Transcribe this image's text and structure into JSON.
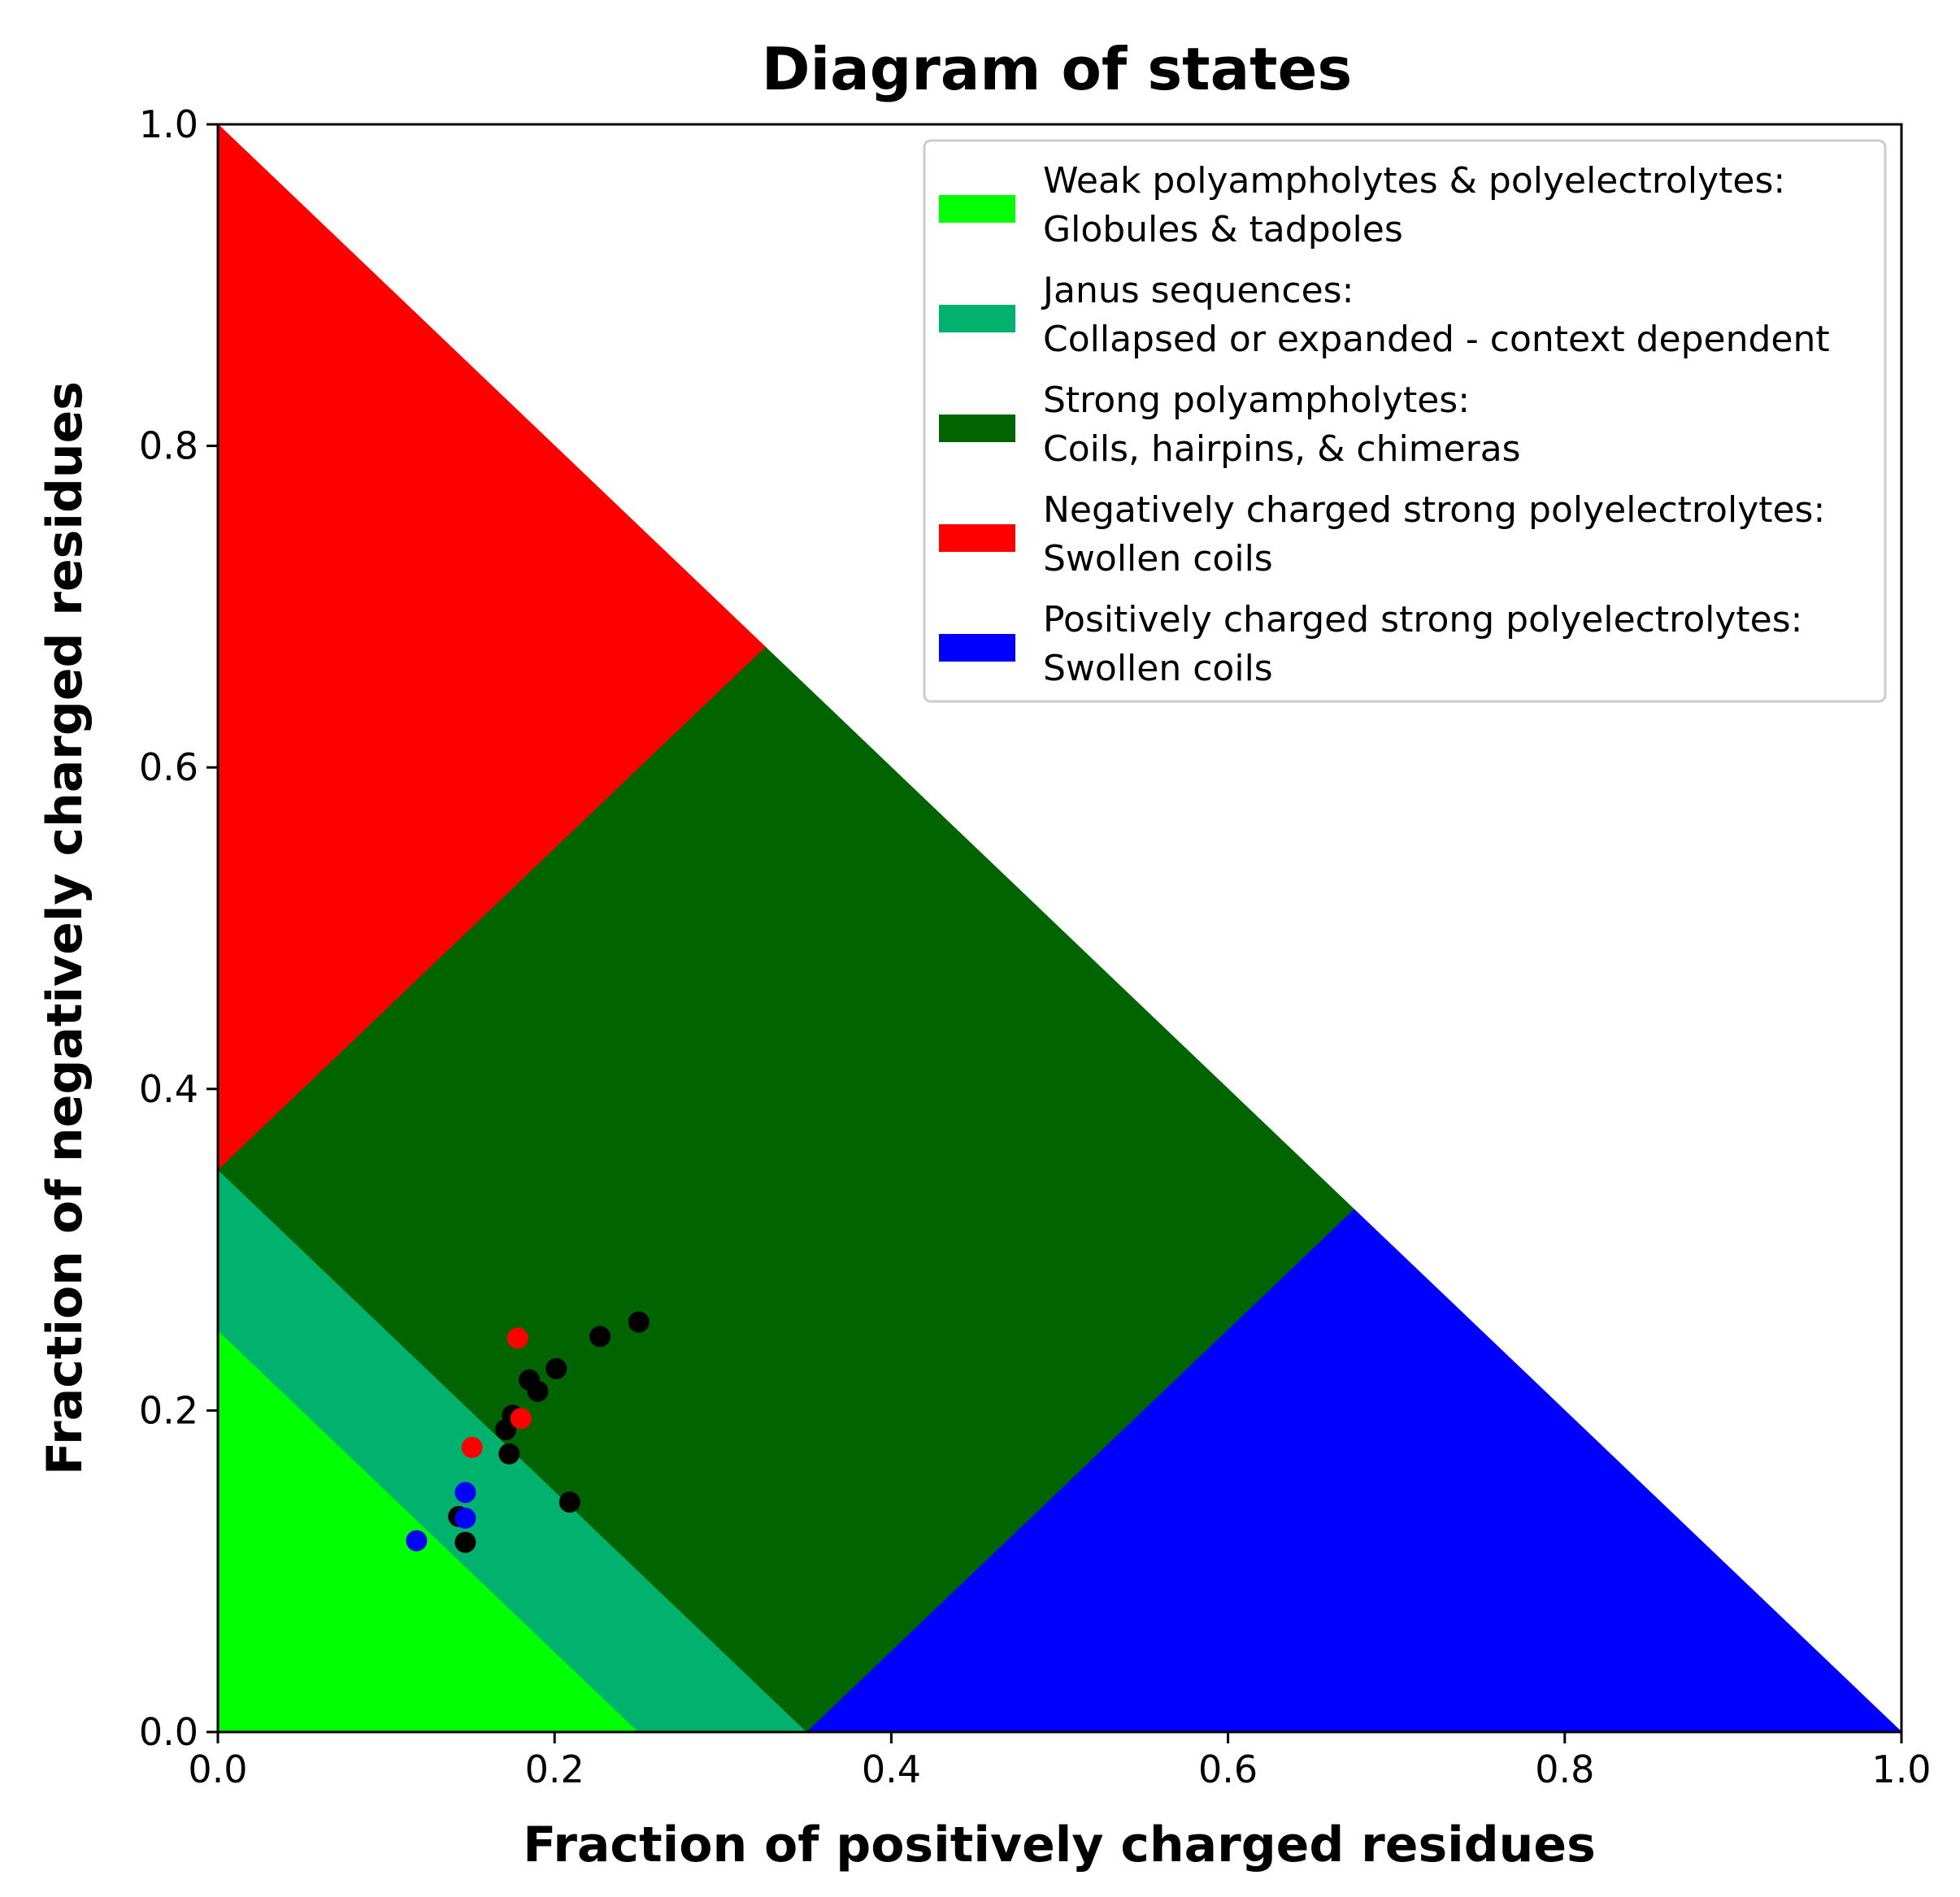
{
  "chart_data": {
    "type": "scatter",
    "title": "Diagram of states",
    "xlabel": "Fraction of positively charged residues",
    "ylabel": "Fraction of negatively charged residues",
    "xlim": [
      0.0,
      1.0
    ],
    "ylim": [
      0.0,
      1.0
    ],
    "xticks": [
      "0.0",
      "0.2",
      "0.4",
      "0.6",
      "0.8",
      "1.0"
    ],
    "yticks": [
      "0.0",
      "0.2",
      "0.4",
      "0.6",
      "0.8",
      "1.0"
    ],
    "grid": false,
    "legend_position": "top-right",
    "regions": [
      {
        "label_line1": "Weak polyampholytes & polyelectrolytes:",
        "label_line2": "Globules & tadpoles",
        "color": "#00ff00",
        "polygon": [
          [
            0,
            0
          ],
          [
            0.25,
            0
          ],
          [
            0,
            0.25
          ]
        ]
      },
      {
        "label_line1": "Janus sequences:",
        "label_line2": "Collapsed or expanded - context dependent",
        "color": "#00b26e",
        "polygon": [
          [
            0.25,
            0
          ],
          [
            0.35,
            0
          ],
          [
            0,
            0.35
          ],
          [
            0,
            0.25
          ]
        ]
      },
      {
        "label_line1": "Strong polyampholytes:",
        "label_line2": "Coils, hairpins, & chimeras",
        "color": "#006400",
        "polygon": [
          [
            0.35,
            0
          ],
          [
            0.675,
            0.325
          ],
          [
            0.325,
            0.675
          ],
          [
            0,
            0.35
          ]
        ]
      },
      {
        "label_line1": "Negatively charged strong polyelectrolytes:",
        "label_line2": "Swollen coils",
        "color": "#ff0000",
        "polygon": [
          [
            0,
            0.35
          ],
          [
            0.325,
            0.675
          ],
          [
            0,
            1
          ]
        ]
      },
      {
        "label_line1": "Positively charged strong polyelectrolytes:",
        "label_line2": "Swollen coils",
        "color": "#0000ff",
        "polygon": [
          [
            0.35,
            0
          ],
          [
            1,
            0
          ],
          [
            0.675,
            0.325
          ]
        ]
      }
    ],
    "series": [
      {
        "color": "#000000",
        "points": [
          [
            0.25,
            0.255
          ],
          [
            0.227,
            0.246
          ],
          [
            0.201,
            0.226
          ],
          [
            0.185,
            0.219
          ],
          [
            0.19,
            0.212
          ],
          [
            0.175,
            0.197
          ],
          [
            0.171,
            0.188
          ],
          [
            0.173,
            0.173
          ],
          [
            0.209,
            0.143
          ],
          [
            0.143,
            0.134
          ],
          [
            0.147,
            0.118
          ]
        ]
      },
      {
        "color": "#ff0000",
        "points": [
          [
            0.178,
            0.245
          ],
          [
            0.18,
            0.195
          ],
          [
            0.151,
            0.177
          ]
        ]
      },
      {
        "color": "#0000ff",
        "points": [
          [
            0.147,
            0.149
          ],
          [
            0.147,
            0.133
          ],
          [
            0.118,
            0.119
          ]
        ]
      }
    ]
  }
}
